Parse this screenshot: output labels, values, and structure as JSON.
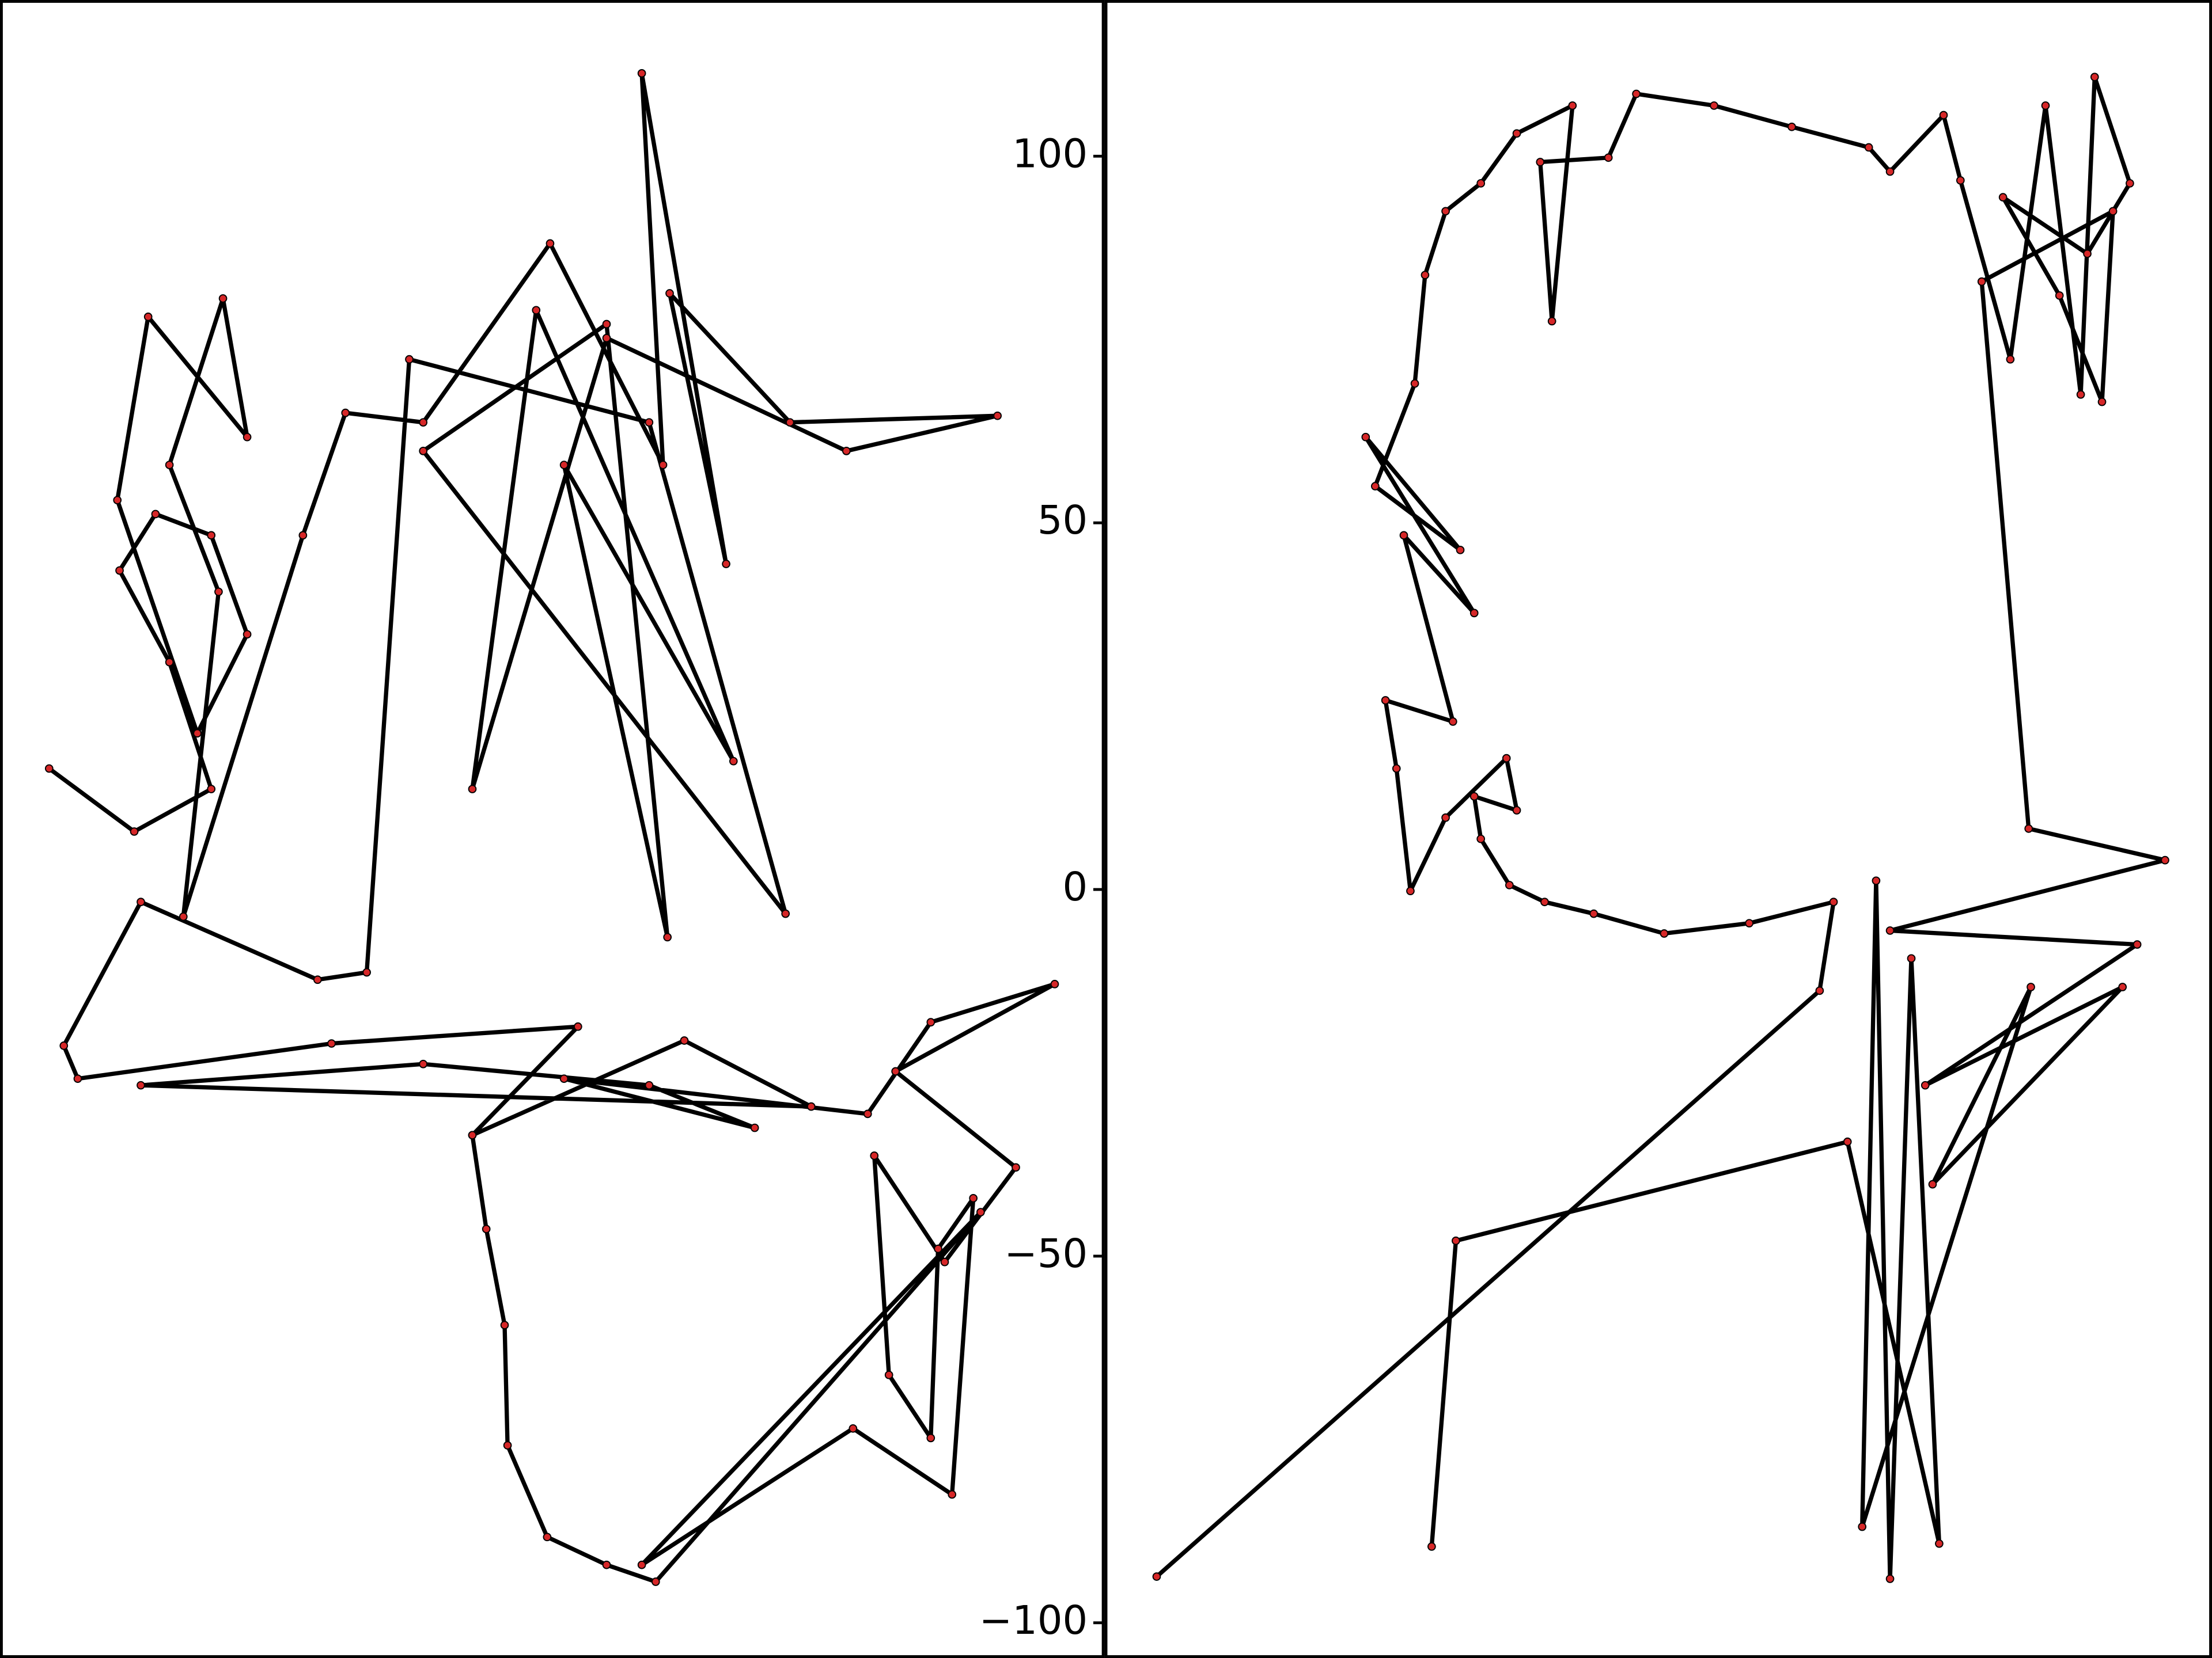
{
  "chart_data": [
    {
      "type": "line",
      "xlim": [
        0,
        150.6
      ],
      "ylim": [
        -104.8,
        121.3
      ],
      "x": [
        6.7,
        18.3,
        28.8,
        23.1,
        16.3,
        21.2,
        28.8,
        33.7,
        26.9,
        16.0,
        20.2,
        33.7,
        30.4,
        23.1,
        29.8,
        25.0,
        41.3,
        47.1,
        57.7,
        75.0,
        90.4,
        87.5,
        99.0,
        91.3,
        107.7,
        136.0,
        115.4,
        82.7,
        64.4,
        73.1,
        100.0,
        76.9,
        91.0,
        82.7,
        57.7,
        107.1,
        88.5,
        55.8,
        50.0,
        43.3,
        19.2,
        8.7,
        10.6,
        45.2,
        78.8,
        64.4,
        93.3,
        110.6,
        19.2,
        57.7,
        88.5,
        102.9,
        76.9,
        118.3,
        126.9,
        143.8,
        122.1,
        138.5,
        128.8,
        119.2,
        121.2,
        126.9,
        127.9,
        132.7,
        129.8,
        116.3,
        87.5,
        133.7,
        89.4,
        82.7,
        74.6,
        69.2,
        68.8,
        66.3,
        64.4
      ],
      "series": [
        {
          "color": "#000000",
          "marker_color": "#d62728",
          "values": [
            16.5,
            7.9,
            13.7,
            31.0,
            43.5,
            51.2,
            48.3,
            34.8,
            21.3,
            53.1,
            78.1,
            61.7,
            80.6,
            57.9,
            40.6,
            -3.7,
            48.3,
            65.0,
            63.7,
            88.1,
            57.9,
            111.3,
            44.4,
            81.3,
            63.7,
            64.6,
            59.8,
            75.2,
            13.7,
            79.0,
            17.5,
            57.9,
            -6.5,
            77.1,
            59.8,
            -3.3,
            63.7,
            72.3,
            -11.3,
            -12.3,
            -1.7,
            -21.3,
            -25.8,
            -21.0,
            -18.7,
            -33.5,
            -20.6,
            -29.6,
            -26.7,
            -23.8,
            -26.7,
            -32.5,
            -25.8,
            -30.6,
            -18.1,
            -12.9,
            -24.8,
            -37.9,
            -50.8,
            -36.3,
            -66.2,
            -74.8,
            -49.0,
            -42.1,
            -82.5,
            -73.5,
            -92.1,
            -44.0,
            -94.4,
            -92.1,
            -88.3,
            -75.8,
            -59.4,
            -46.3,
            -33.5
          ]
        }
      ]
    },
    {
      "type": "line",
      "xlim": [
        0,
        151
      ],
      "ylim": [
        -104.8,
        121.3
      ],
      "yticks": [
        {
          "value": -100,
          "label": "−100"
        },
        {
          "value": -50,
          "label": "−50"
        },
        0,
        50,
        100
      ],
      "x": [
        7.1,
        97.5,
        99.4,
        87.9,
        76.3,
        66.7,
        60.0,
        55.2,
        51.3,
        50.4,
        56.2,
        54.8,
        46.5,
        41.7,
        39.8,
        38.3,
        47.5,
        40.8,
        50.4,
        35.6,
        48.5,
        36.9,
        42.3,
        43.7,
        46.5,
        51.3,
        56.2,
        63.8,
        61.0,
        59.4,
        68.7,
        72.5,
        83.1,
        93.7,
        104.2,
        107.1,
        114.4,
        116.7,
        123.5,
        128.3,
        133.1,
        135.0,
        139.8,
        134.0,
        122.5,
        130.2,
        136.0,
        137.5,
        119.6,
        126.0,
        144.6,
        107.1,
        140.8,
        111.9,
        138.8,
        112.9,
        126.3,
        103.3,
        105.2,
        107.1,
        110.0,
        113.8,
        101.3,
        47.9,
        44.6
      ],
      "series": [
        {
          "color": "#000000",
          "marker_color": "#d62728",
          "values": [
            -93.7,
            -13.8,
            -1.7,
            -4.6,
            -6.0,
            -3.3,
            -1.7,
            0.6,
            6.9,
            12.7,
            10.8,
            17.9,
            9.8,
            -0.2,
            16.5,
            25.8,
            22.9,
            48.3,
            37.7,
            61.7,
            46.3,
            55.0,
            69.0,
            83.8,
            92.5,
            96.3,
            103.1,
            106.9,
            77.5,
            99.2,
            99.8,
            108.5,
            106.9,
            104.0,
            101.2,
            97.9,
            105.6,
            96.7,
            72.3,
            106.9,
            67.5,
            110.8,
            96.3,
            86.7,
            94.4,
            81.0,
            66.5,
            92.5,
            82.9,
            8.3,
            4.0,
            -5.6,
            -7.5,
            -26.7,
            -13.3,
            -40.2,
            -13.3,
            -86.9,
            1.2,
            -94.0,
            -9.4,
            -89.2,
            -34.4,
            -47.9,
            -89.6
          ]
        }
      ]
    }
  ]
}
